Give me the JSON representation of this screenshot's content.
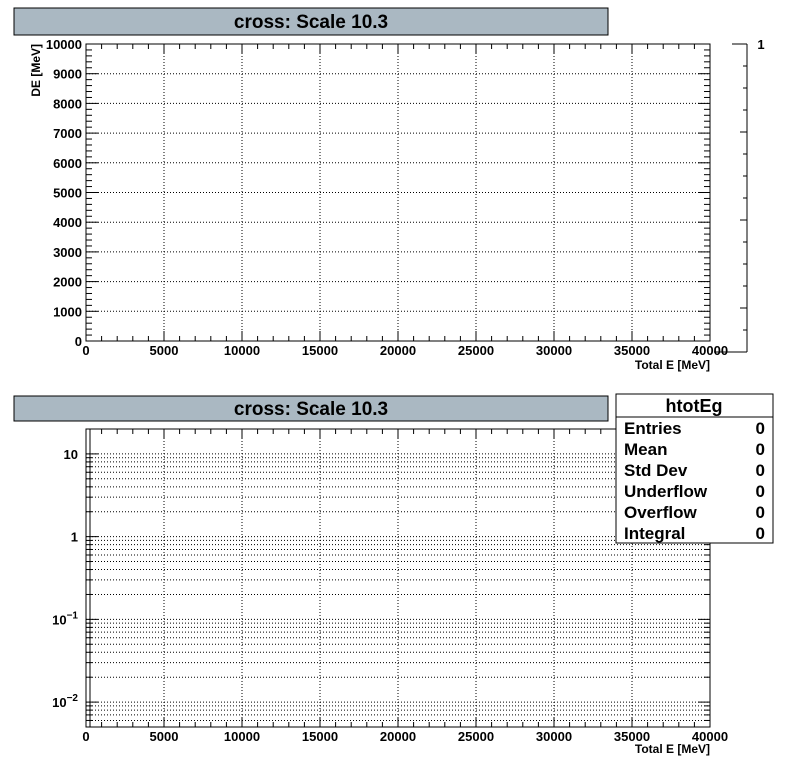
{
  "chart_data": [
    {
      "type": "heatmap",
      "title": "cross: Scale 10.3",
      "xlabel": "Total E [MeV]",
      "ylabel": "DE [MeV]",
      "xlim": [
        0,
        40000
      ],
      "ylim": [
        0,
        10000
      ],
      "x_ticks": [
        0,
        5000,
        10000,
        15000,
        20000,
        25000,
        30000,
        35000,
        40000
      ],
      "y_ticks": [
        0,
        1000,
        2000,
        3000,
        4000,
        5000,
        6000,
        7000,
        8000,
        9000,
        10000
      ],
      "grid": true,
      "values": [],
      "palette_axis": {
        "label": "1",
        "value": 1
      }
    },
    {
      "type": "bar",
      "title": "cross: Scale 10.3",
      "xlabel": "Total E [MeV]",
      "xlim": [
        0,
        40000
      ],
      "ylim": [
        0.005,
        20
      ],
      "ylog": true,
      "x_ticks": [
        0,
        5000,
        10000,
        15000,
        20000,
        25000,
        30000,
        35000,
        40000
      ],
      "y_ticks": [
        {
          "value": 0.01,
          "mantissa": "10",
          "exp": "−2"
        },
        {
          "value": 0.1,
          "mantissa": "10",
          "exp": "−1"
        },
        {
          "value": 1,
          "mantissa": "1",
          "exp": ""
        },
        {
          "value": 10,
          "mantissa": "10",
          "exp": ""
        }
      ],
      "grid": true,
      "values": [],
      "stats": {
        "name": "htotEg",
        "rows": [
          {
            "label": "Entries",
            "value": "0"
          },
          {
            "label": "Mean",
            "value": "0"
          },
          {
            "label": "Std Dev",
            "value": "0"
          },
          {
            "label": "Underflow",
            "value": "0"
          },
          {
            "label": "Overflow",
            "value": "0"
          },
          {
            "label": "Integral",
            "value": "0"
          }
        ]
      }
    }
  ]
}
